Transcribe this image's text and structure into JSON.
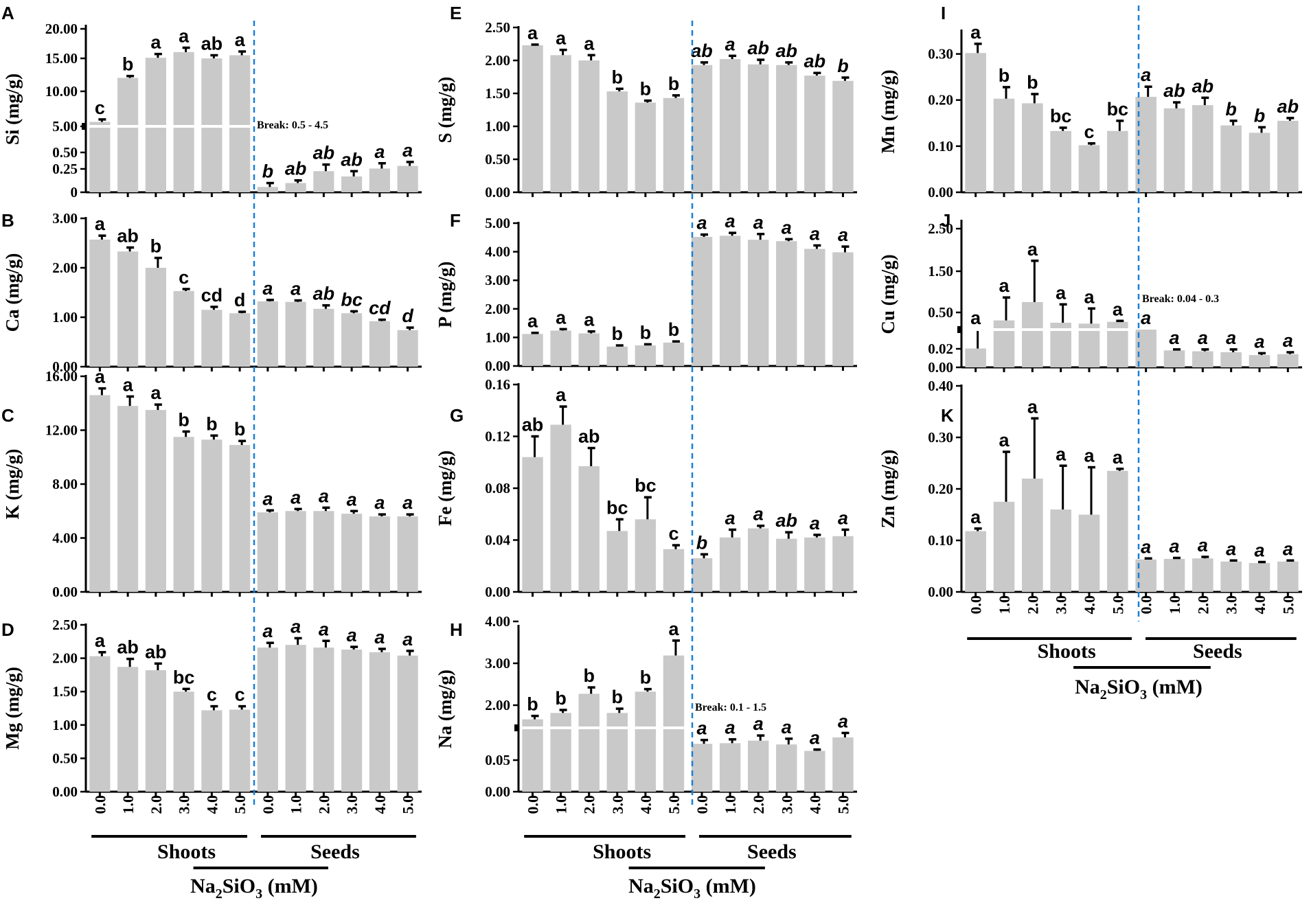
{
  "figure": {
    "group_labels": [
      "Shoots",
      "Seeds"
    ],
    "x_title_prefix": "Na",
    "x_title_sub1": "2",
    "x_title_mid": "SiO",
    "x_title_sub2": "3",
    "x_title_suffix": " (mM)",
    "tick_labels": [
      "0.0",
      "1.0",
      "2.0",
      "3.0",
      "4.0",
      "5.0"
    ],
    "bar_color": "#c9c9c9",
    "divider_color": "#1a7fd4"
  },
  "chart_data": [
    {
      "panel": "A",
      "type": "bar",
      "ylabel": "Si (mg/g)",
      "broken_axis": true,
      "break_label": "Break: 0.5 - 4.5",
      "yticks": [
        "0",
        "0.25",
        "0.50",
        "5.00",
        "10.00",
        "15.00",
        "20.00"
      ],
      "categories": [
        "0.0",
        "1.0",
        "2.0",
        "3.0",
        "4.0",
        "5.0"
      ],
      "series": [
        {
          "name": "Shoots",
          "values": [
            5.2,
            12.2,
            15.4,
            16.3,
            15.3,
            15.8
          ],
          "errors": [
            0.4,
            0.3,
            0.6,
            0.7,
            0.5,
            0.6
          ],
          "letters": [
            "c",
            "b",
            "a",
            "a",
            "ab",
            "a"
          ]
        },
        {
          "name": "Seeds",
          "values": [
            0.04,
            0.07,
            0.16,
            0.12,
            0.18,
            0.2
          ],
          "errors": [
            0.03,
            0.02,
            0.05,
            0.04,
            0.04,
            0.03
          ],
          "letters": [
            "b",
            "ab",
            "ab",
            "ab",
            "a",
            "a"
          ]
        }
      ]
    },
    {
      "panel": "B",
      "type": "bar",
      "ylabel": "Ca (mg/g)",
      "ylim": [
        0,
        3
      ],
      "yticks": [
        "0.00",
        "1.00",
        "2.00",
        "3.00"
      ],
      "categories": [
        "0.0",
        "1.0",
        "2.0",
        "3.0",
        "4.0",
        "5.0"
      ],
      "series": [
        {
          "name": "Shoots",
          "values": [
            2.57,
            2.33,
            2.0,
            1.53,
            1.15,
            1.08
          ],
          "errors": [
            0.08,
            0.08,
            0.2,
            0.04,
            0.06,
            0.03
          ],
          "letters": [
            "a",
            "ab",
            "b",
            "c",
            "cd",
            "d"
          ]
        },
        {
          "name": "Seeds",
          "values": [
            1.32,
            1.31,
            1.17,
            1.08,
            0.92,
            0.74
          ],
          "errors": [
            0.03,
            0.03,
            0.07,
            0.04,
            0.03,
            0.05
          ],
          "letters": [
            "a",
            "a",
            "ab",
            "bc",
            "cd",
            "d"
          ]
        }
      ]
    },
    {
      "panel": "C",
      "type": "bar",
      "ylabel": "K (mg/g)",
      "ylim": [
        0,
        16
      ],
      "yticks": [
        "0.00",
        "4.00",
        "8.00",
        "12.00",
        "16.00"
      ],
      "categories": [
        "0.0",
        "1.0",
        "2.0",
        "3.0",
        "4.0",
        "5.0"
      ],
      "series": [
        {
          "name": "Shoots",
          "values": [
            14.6,
            13.8,
            13.5,
            11.5,
            11.3,
            10.9
          ],
          "errors": [
            0.5,
            0.7,
            0.4,
            0.4,
            0.3,
            0.3
          ],
          "letters": [
            "a",
            "a",
            "a",
            "b",
            "b",
            "b"
          ]
        },
        {
          "name": "Seeds",
          "values": [
            5.9,
            6.0,
            6.0,
            5.8,
            5.6,
            5.6
          ],
          "errors": [
            0.15,
            0.15,
            0.25,
            0.2,
            0.15,
            0.15
          ],
          "letters": [
            "a",
            "a",
            "a",
            "a",
            "a",
            "a"
          ]
        }
      ]
    },
    {
      "panel": "D",
      "type": "bar",
      "ylabel": "Mg (mg/g)",
      "ylim": [
        0,
        2.5
      ],
      "yticks": [
        "0.00",
        "0.50",
        "1.00",
        "1.50",
        "2.00",
        "2.50"
      ],
      "categories": [
        "0.0",
        "1.0",
        "2.0",
        "3.0",
        "4.0",
        "5.0"
      ],
      "series": [
        {
          "name": "Shoots",
          "values": [
            2.03,
            1.87,
            1.82,
            1.5,
            1.22,
            1.23
          ],
          "errors": [
            0.06,
            0.12,
            0.1,
            0.04,
            0.06,
            0.05
          ],
          "letters": [
            "a",
            "ab",
            "ab",
            "bc",
            "c",
            "c"
          ]
        },
        {
          "name": "Seeds",
          "values": [
            2.16,
            2.2,
            2.16,
            2.13,
            2.09,
            2.04
          ],
          "errors": [
            0.07,
            0.1,
            0.1,
            0.04,
            0.05,
            0.07
          ],
          "letters": [
            "a",
            "a",
            "a",
            "a",
            "a",
            "a"
          ]
        }
      ]
    },
    {
      "panel": "E",
      "type": "bar",
      "ylabel": "S (mg/g)",
      "ylim": [
        0,
        2.5
      ],
      "yticks": [
        "0.00",
        "0.50",
        "1.00",
        "1.50",
        "2.00",
        "2.50"
      ],
      "categories": [
        "0.0",
        "1.0",
        "2.0",
        "3.0",
        "4.0",
        "5.0"
      ],
      "series": [
        {
          "name": "Shoots",
          "values": [
            2.23,
            2.08,
            2.0,
            1.53,
            1.36,
            1.43
          ],
          "errors": [
            0.01,
            0.08,
            0.08,
            0.04,
            0.03,
            0.04
          ],
          "letters": [
            "a",
            "a",
            "a",
            "b",
            "b",
            "b"
          ]
        },
        {
          "name": "Seeds",
          "values": [
            1.93,
            2.02,
            1.94,
            1.93,
            1.77,
            1.69
          ],
          "errors": [
            0.04,
            0.05,
            0.07,
            0.04,
            0.04,
            0.05
          ],
          "letters": [
            "ab",
            "a",
            "ab",
            "ab",
            "ab",
            "b"
          ]
        }
      ]
    },
    {
      "panel": "F",
      "type": "bar",
      "ylabel": "P (mg/g)",
      "ylim": [
        0,
        5
      ],
      "yticks": [
        "0.00",
        "1.00",
        "2.00",
        "3.00",
        "4.00",
        "5.00"
      ],
      "categories": [
        "0.0",
        "1.0",
        "2.0",
        "3.0",
        "4.0",
        "5.0"
      ],
      "series": [
        {
          "name": "Shoots",
          "values": [
            1.12,
            1.24,
            1.14,
            0.68,
            0.72,
            0.82
          ],
          "errors": [
            0.04,
            0.05,
            0.07,
            0.04,
            0.04,
            0.04
          ],
          "letters": [
            "a",
            "a",
            "a",
            "b",
            "b",
            "b"
          ]
        },
        {
          "name": "Seeds",
          "values": [
            4.52,
            4.56,
            4.42,
            4.37,
            4.1,
            3.98
          ],
          "errors": [
            0.08,
            0.1,
            0.2,
            0.07,
            0.12,
            0.2
          ],
          "letters": [
            "a",
            "a",
            "a",
            "a",
            "a",
            "a"
          ]
        }
      ]
    },
    {
      "panel": "G",
      "type": "bar",
      "ylabel": "Fe (mg/g)",
      "ylim": [
        0,
        0.16
      ],
      "yticks": [
        "0.00",
        "0.04",
        "0.08",
        "0.12",
        "0.16"
      ],
      "categories": [
        "0.0",
        "1.0",
        "2.0",
        "3.0",
        "4.0",
        "5.0"
      ],
      "series": [
        {
          "name": "Shoots",
          "values": [
            0.104,
            0.129,
            0.097,
            0.047,
            0.056,
            0.033
          ],
          "errors": [
            0.016,
            0.014,
            0.014,
            0.009,
            0.017,
            0.003
          ],
          "letters": [
            "ab",
            "a",
            "ab",
            "bc",
            "bc",
            "c"
          ]
        },
        {
          "name": "Seeds",
          "values": [
            0.026,
            0.042,
            0.049,
            0.041,
            0.042,
            0.043
          ],
          "errors": [
            0.003,
            0.006,
            0.002,
            0.005,
            0.002,
            0.005
          ],
          "letters": [
            "b",
            "a",
            "a",
            "ab",
            "a",
            "a"
          ]
        }
      ]
    },
    {
      "panel": "H",
      "type": "bar",
      "ylabel": "Na (mg/g)",
      "broken_axis": true,
      "break_label": "Break: 0.1 - 1.5",
      "yticks": [
        "0.00",
        "0.05",
        "2.00",
        "3.00",
        "4.00"
      ],
      "categories": [
        "0.0",
        "1.0",
        "2.0",
        "3.0",
        "4.0",
        "5.0"
      ],
      "series": [
        {
          "name": "Shoots",
          "values": [
            1.7,
            1.85,
            2.3,
            1.85,
            2.35,
            3.2
          ],
          "errors": [
            0.08,
            0.07,
            0.15,
            0.1,
            0.06,
            0.35
          ],
          "letters": [
            "b",
            "b",
            "b",
            "b",
            "b",
            "a"
          ]
        },
        {
          "name": "Seeds",
          "values": [
            0.075,
            0.076,
            0.08,
            0.074,
            0.064,
            0.085
          ],
          "errors": [
            0.006,
            0.006,
            0.008,
            0.009,
            0.002,
            0.007
          ],
          "letters": [
            "a",
            "a",
            "a",
            "a",
            "a",
            "a"
          ]
        }
      ]
    },
    {
      "panel": "I",
      "type": "bar",
      "ylabel": "Mn (mg/g)",
      "ylim": [
        0,
        0.35
      ],
      "yticks": [
        "0.00",
        "0.10",
        "0.20",
        "0.30"
      ],
      "categories": [
        "0.0",
        "1.0",
        "2.0",
        "3.0",
        "4.0",
        "5.0"
      ],
      "series": [
        {
          "name": "Shoots",
          "values": [
            0.302,
            0.203,
            0.193,
            0.133,
            0.102,
            0.133
          ],
          "errors": [
            0.02,
            0.025,
            0.02,
            0.007,
            0.004,
            0.022
          ],
          "letters": [
            "a",
            "b",
            "b",
            "bc",
            "c",
            "bc"
          ]
        },
        {
          "name": "Seeds",
          "values": [
            0.207,
            0.182,
            0.189,
            0.145,
            0.129,
            0.155
          ],
          "errors": [
            0.022,
            0.013,
            0.016,
            0.01,
            0.012,
            0.006
          ],
          "letters": [
            "a",
            "ab",
            "ab",
            "b",
            "b",
            "ab"
          ]
        }
      ]
    },
    {
      "panel": "J",
      "type": "bar",
      "ylabel": "Cu (mg/g)",
      "broken_axis": true,
      "break_label": "Break: 0.04 - 0.3",
      "yticks": [
        "0.00",
        "0.02",
        "0.50",
        "1.50",
        "2.50"
      ],
      "categories": [
        "0.0",
        "1.0",
        "2.0",
        "3.0",
        "4.0",
        "5.0"
      ],
      "series": [
        {
          "name": "Shoots",
          "values": [
            0.02,
            0.5,
            0.9,
            0.45,
            0.43,
            0.47
          ],
          "errors": [
            0.02,
            0.5,
            0.9,
            0.4,
            0.33,
            0.02
          ],
          "letters": [
            "a",
            "a",
            "a",
            "a",
            "a",
            "a"
          ]
        },
        {
          "name": "Seeds",
          "values": [
            0.3,
            0.018,
            0.017,
            0.016,
            0.013,
            0.014
          ],
          "errors": [
            0.0,
            0.001,
            0.002,
            0.003,
            0.002,
            0.002
          ],
          "letters": [
            "a",
            "a",
            "a",
            "a",
            "a",
            "a"
          ]
        }
      ]
    },
    {
      "panel": "K",
      "type": "bar",
      "ylabel": "Zn (mg/g)",
      "ylim": [
        0,
        0.4
      ],
      "yticks": [
        "0.00",
        "0.10",
        "0.20",
        "0.30",
        "0.40"
      ],
      "categories": [
        "0.0",
        "1.0",
        "2.0",
        "3.0",
        "4.0",
        "5.0"
      ],
      "series": [
        {
          "name": "Shoots",
          "values": [
            0.118,
            0.175,
            0.22,
            0.16,
            0.15,
            0.235
          ],
          "errors": [
            0.005,
            0.097,
            0.117,
            0.085,
            0.092,
            0.004
          ],
          "letters": [
            "a",
            "a",
            "a",
            "a",
            "a",
            "a"
          ]
        },
        {
          "name": "Seeds",
          "values": [
            0.063,
            0.064,
            0.065,
            0.059,
            0.056,
            0.059
          ],
          "errors": [
            0.002,
            0.002,
            0.003,
            0.002,
            0.002,
            0.002
          ],
          "letters": [
            "a",
            "a",
            "a",
            "a",
            "a",
            "a"
          ]
        }
      ]
    }
  ]
}
